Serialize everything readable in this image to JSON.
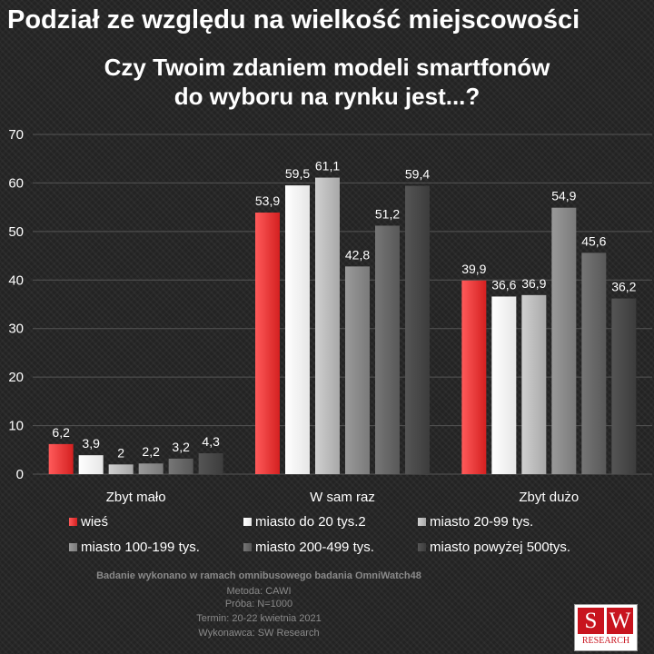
{
  "header": {
    "title": "Podział ze względu na wielkość miejscowości"
  },
  "chart_data": {
    "type": "bar",
    "title_lines": [
      "Czy Twoim zdaniem modeli smartfonów",
      "do wyboru na rynku jest...?"
    ],
    "categories": [
      "Zbyt mało",
      "W sam raz",
      "Zbyt dużo"
    ],
    "ylim": [
      0,
      70
    ],
    "yticks": [
      "0",
      "10",
      "20",
      "30",
      "40",
      "50",
      "60",
      "70"
    ],
    "grid": true,
    "legend_position": "bottom",
    "series": [
      {
        "name": "wieś",
        "values": [
          6.2,
          53.9,
          39.9
        ],
        "labels": [
          "6,2",
          "53,9",
          "39,9"
        ],
        "color": "#d42020",
        "highlight": "#ff5a5a"
      },
      {
        "name": "miasto do 20 tys.2",
        "values": [
          3.9,
          59.5,
          36.6
        ],
        "labels": [
          "3,9",
          "59,5",
          "36,6"
        ],
        "color": "#e6e6e6",
        "highlight": "#ffffff"
      },
      {
        "name": "miasto 20-99 tys.",
        "values": [
          2,
          61.1,
          36.9
        ],
        "labels": [
          "2",
          "61,1",
          "36,9"
        ],
        "color": "#a8a8a8",
        "highlight": "#d0d0d0"
      },
      {
        "name": "miasto 100-199 tys.",
        "values": [
          2.2,
          42.8,
          54.9
        ],
        "labels": [
          "2,2",
          "42,8",
          "54,9"
        ],
        "color": "#7a7a7a",
        "highlight": "#9a9a9a"
      },
      {
        "name": "miasto 200-499 tys.",
        "values": [
          3.2,
          51.2,
          45.6
        ],
        "labels": [
          "3,2",
          "51,2",
          "45,6"
        ],
        "color": "#585858",
        "highlight": "#767676"
      },
      {
        "name": "miasto powyżej 500tys.",
        "values": [
          4.3,
          59.4,
          36.2
        ],
        "labels": [
          "4,3",
          "59,4",
          "36,2"
        ],
        "color": "#3c3c3c",
        "highlight": "#555555"
      }
    ]
  },
  "footer": {
    "line1": "Badanie wykonano w ramach omnibusowego badania OmniWatch48",
    "line2": "Metoda: CAWI",
    "line3": "Próba: N=1000",
    "line4": "Termin: 20-22 kwietnia 2021",
    "line5": "Wykonawca: SW Research"
  },
  "logo": {
    "letter1": "S",
    "letter2": "W",
    "text": "RESEARCH"
  }
}
